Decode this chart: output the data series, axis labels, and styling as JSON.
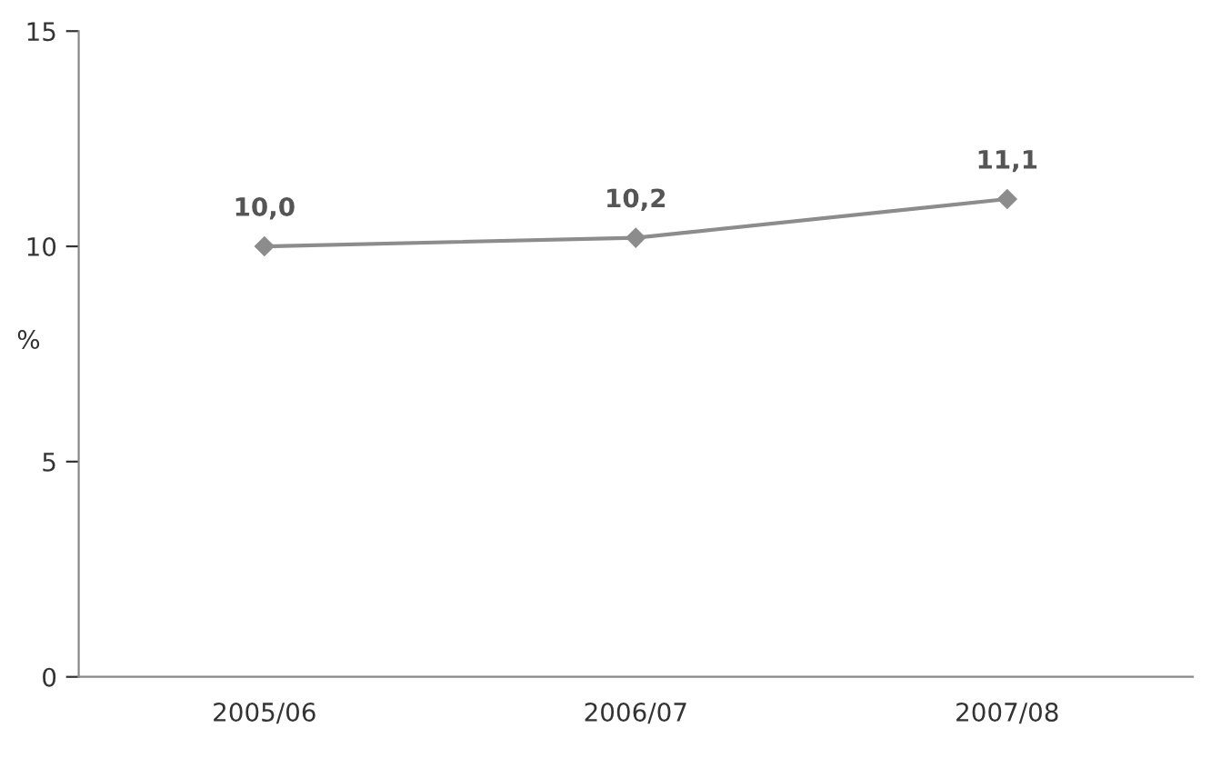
{
  "chart_data": {
    "type": "line",
    "ylabel": "%",
    "categories": [
      "2005/06",
      "2006/07",
      "2007/08"
    ],
    "series": [
      {
        "color": "#8c8c8c",
        "values": [
          10.0,
          10.2,
          11.1
        ],
        "value_labels": [
          "10,0",
          "10,2",
          "11,1"
        ]
      }
    ],
    "ylim": [
      0,
      15
    ],
    "yticks": [
      0,
      5,
      10,
      15
    ],
    "marker": "diamond",
    "line_style": "solid",
    "grid": false,
    "legend": false
  }
}
